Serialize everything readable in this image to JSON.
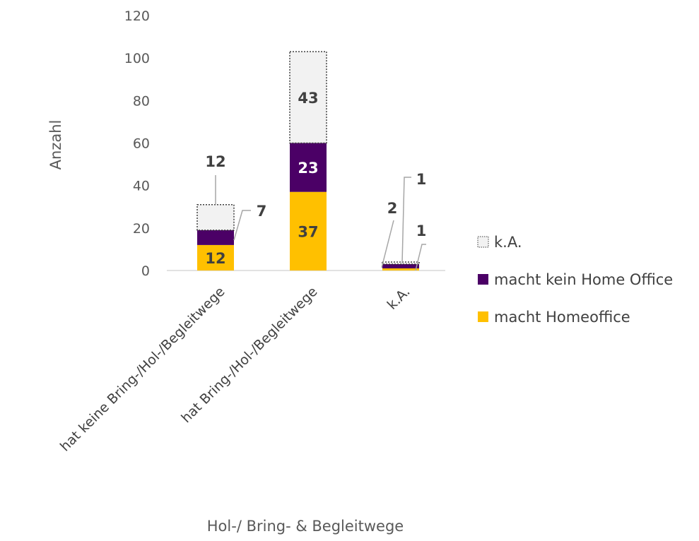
{
  "chart_data": {
    "type": "bar",
    "stacked": true,
    "title": "",
    "xlabel": "Hol-/ Bring- & Begleitwege",
    "ylabel": "Anzahl",
    "ylim": [
      0,
      120
    ],
    "yticks": [
      0,
      20,
      40,
      60,
      80,
      100,
      120
    ],
    "grid": false,
    "legend_position": "right",
    "categories": [
      "hat keine Bring-/Hol-/Begleitwege",
      "hat Bring-/Hol-/Begleitwege",
      "k.A."
    ],
    "series": [
      {
        "name": "macht Homeoffice",
        "color": "#FFC000",
        "values": [
          12,
          37,
          1
        ]
      },
      {
        "name": "macht kein Home Office",
        "color": "#4B0066",
        "values": [
          7,
          23,
          2
        ]
      },
      {
        "name": "k.A.",
        "color": "#F2F2F2",
        "border": "dotted",
        "values": [
          12,
          43,
          1
        ]
      }
    ]
  }
}
